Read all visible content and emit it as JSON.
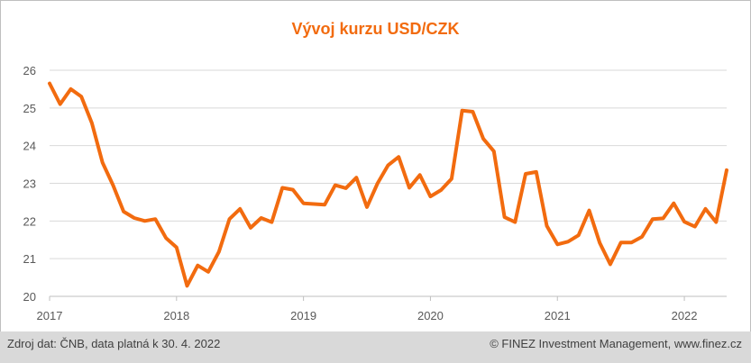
{
  "chart_data": {
    "type": "line",
    "title": "Vývoj kurzu USD/CZK",
    "xlabel": "",
    "ylabel": "",
    "ylim": [
      20,
      26
    ],
    "yticks": [
      20,
      21,
      22,
      23,
      24,
      25,
      26
    ],
    "xlim": [
      "2017-01",
      "2022-05"
    ],
    "xticks": [
      "2017",
      "2018",
      "2019",
      "2020",
      "2021",
      "2022"
    ],
    "grid": "horizontal",
    "legend": "none",
    "line_color": "#f26b0f",
    "series": [
      {
        "x": [
          "2017-01",
          "2017-02",
          "2017-03",
          "2017-04",
          "2017-05",
          "2017-06",
          "2017-07",
          "2017-08",
          "2017-09",
          "2017-10",
          "2017-11",
          "2017-12",
          "2018-01",
          "2018-02",
          "2018-03",
          "2018-04",
          "2018-05",
          "2018-06",
          "2018-07",
          "2018-08",
          "2018-09",
          "2018-10",
          "2018-11",
          "2018-12",
          "2019-01",
          "2019-02",
          "2019-03",
          "2019-04",
          "2019-05",
          "2019-06",
          "2019-07",
          "2019-08",
          "2019-09",
          "2019-10",
          "2019-11",
          "2019-12",
          "2020-01",
          "2020-02",
          "2020-03",
          "2020-04",
          "2020-05",
          "2020-06",
          "2020-07",
          "2020-08",
          "2020-09",
          "2020-10",
          "2020-11",
          "2020-12",
          "2021-01",
          "2021-02",
          "2021-03",
          "2021-04",
          "2021-05",
          "2021-06",
          "2021-07",
          "2021-08",
          "2021-09",
          "2021-10",
          "2021-11",
          "2021-12",
          "2022-01",
          "2022-02",
          "2022-03",
          "2022-04",
          "2022-05"
        ],
        "values": [
          25.65,
          25.1,
          25.5,
          25.3,
          24.6,
          23.55,
          22.95,
          22.25,
          22.08,
          22.0,
          22.05,
          21.55,
          21.3,
          20.28,
          20.82,
          20.65,
          21.18,
          22.05,
          22.32,
          21.82,
          22.08,
          21.97,
          22.88,
          22.83,
          22.47,
          22.45,
          22.43,
          22.95,
          22.87,
          23.15,
          22.37,
          23.0,
          23.48,
          23.7,
          22.88,
          23.22,
          22.65,
          22.82,
          23.12,
          24.93,
          24.9,
          24.18,
          23.85,
          22.1,
          21.97,
          23.25,
          23.3,
          21.87,
          21.38,
          21.45,
          21.62,
          22.28,
          21.42,
          20.85,
          21.43,
          21.43,
          21.58,
          22.05,
          22.07,
          22.47,
          21.98,
          21.85,
          22.32,
          21.97,
          23.35
        ]
      }
    ]
  },
  "footer": {
    "source": "Zdroj dat: ČNB, data platná k 30. 4. 2022",
    "copyright": "© FINEZ Investment Management, www.finez.cz"
  }
}
